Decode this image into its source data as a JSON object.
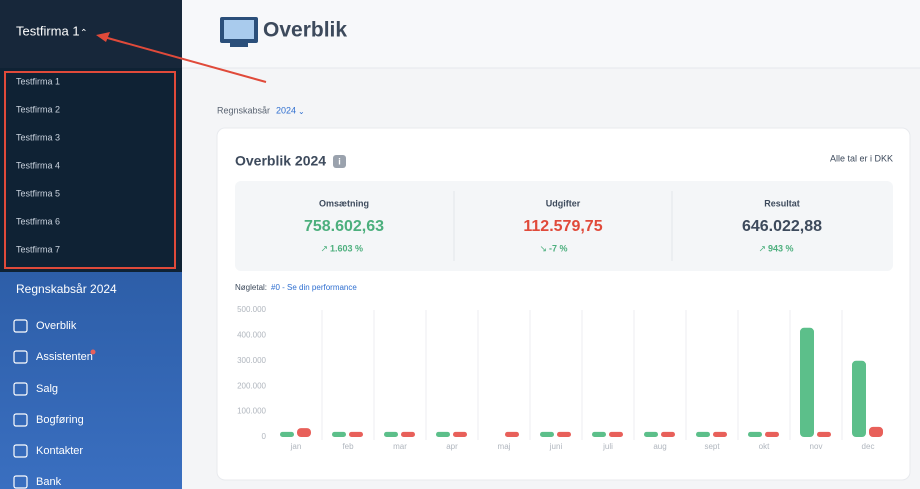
{
  "sidebar": {
    "company": "Testfirma 1",
    "company_list": [
      "Testfirma 1",
      "Testfirma 2",
      "Testfirma 3",
      "Testfirma 4",
      "Testfirma 5",
      "Testfirma 6",
      "Testfirma 7"
    ],
    "fiscal_year": "Regnskabsår 2024",
    "menu": [
      "Overblik",
      "Assistenten",
      "Salg",
      "Bogføring",
      "Kontakter",
      "Bank"
    ]
  },
  "header": {
    "title": "Overblik"
  },
  "filter": {
    "label": "Regnskabsår",
    "value": "2024"
  },
  "card": {
    "title": "Overblik 2024",
    "note": "Alle tal er i DKK",
    "kpis": [
      {
        "label": "Omsætning",
        "value": "758.602,63",
        "change": "1.603 %"
      },
      {
        "label": "Udgifter",
        "value": "112.579,75",
        "change": "-7 %"
      },
      {
        "label": "Resultat",
        "value": "646.022,88",
        "change": "943 %"
      }
    ],
    "key_label": "Nøgletal:",
    "key_link": "#0 - Se din performance"
  },
  "chart": {
    "type": "bar",
    "categories": [
      "jan",
      "feb",
      "mar",
      "apr",
      "maj",
      "juni",
      "juli",
      "aug",
      "sept",
      "okt",
      "nov",
      "dec"
    ],
    "series": [
      {
        "color": "#5cbf8a",
        "values": [
          20000,
          20000,
          20000,
          20000,
          0,
          20000,
          20000,
          20000,
          20000,
          20000,
          430000,
          300000
        ]
      },
      {
        "color": "#e8605a",
        "values": [
          35000,
          20000,
          20000,
          20000,
          20000,
          20000,
          20000,
          20000,
          20000,
          20000,
          20000,
          40000
        ]
      }
    ],
    "ylim": [
      0,
      500000
    ],
    "yticks": [
      0,
      {
        "value": 100000,
        "label": "100.000"
      },
      {
        "value": 200000,
        "label": "200.000"
      },
      {
        "value": 300000,
        "label": "300.000"
      },
      {
        "value": 400000,
        "label": "400.000"
      },
      {
        "value": 500000,
        "label": "500.000"
      }
    ]
  }
}
